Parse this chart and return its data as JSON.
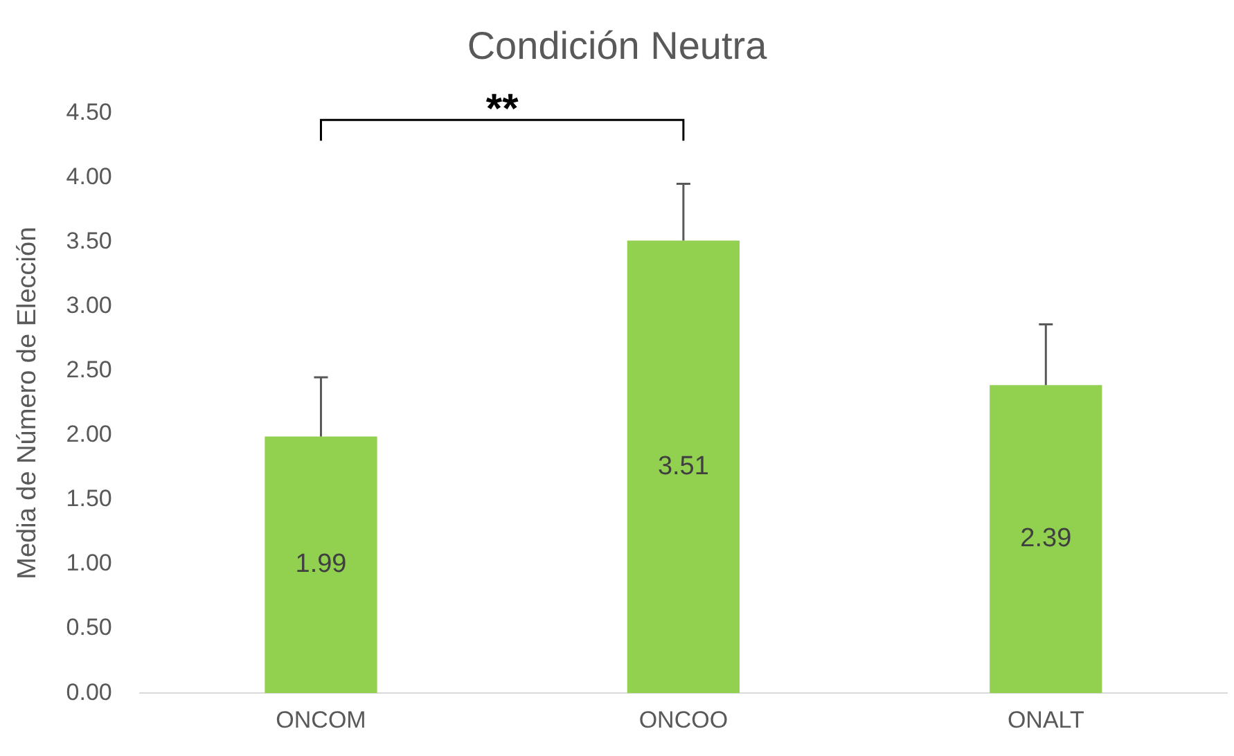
{
  "chart_data": {
    "type": "bar",
    "title": "Condición Neutra",
    "ylabel": "Media de Número de Elección",
    "categories": [
      "ONCOM",
      "ONCOO",
      "ONALT"
    ],
    "values": [
      1.99,
      3.51,
      2.39
    ],
    "color": "#92d050",
    "errors": [
      [
        1.99,
        2.45
      ],
      [
        3.51,
        3.95
      ],
      [
        2.39,
        2.86
      ]
    ],
    "ylim": [
      0,
      4.5
    ],
    "yticks": [
      {
        "value": 0,
        "label": "0.00"
      },
      {
        "value": 0.5,
        "label": "0.50"
      },
      {
        "value": 1,
        "label": "1.00"
      },
      {
        "value": 1.5,
        "label": "1.50"
      },
      {
        "value": 2,
        "label": "2.00"
      },
      {
        "value": 2.5,
        "label": "2.50"
      },
      {
        "value": 3,
        "label": "3.00"
      },
      {
        "value": 3.5,
        "label": "3.50"
      },
      {
        "value": 4,
        "label": "4.00"
      },
      {
        "value": 4.5,
        "label": "4.50"
      }
    ],
    "grid": false,
    "legend": false,
    "data_labels": true,
    "annotations": [
      "**"
    ]
  }
}
